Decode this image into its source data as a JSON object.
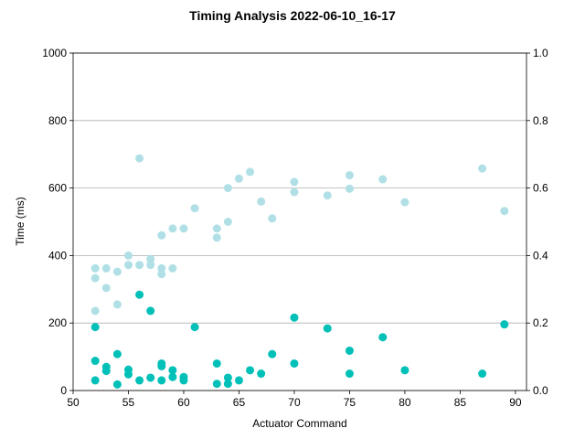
{
  "chart_data": {
    "type": "scatter",
    "title": "Timing Analysis 2022-06-10_16-17",
    "xlabel": "Actuator Command",
    "ylabel": "Time (ms)",
    "xlim": [
      50,
      91
    ],
    "ylim": [
      0,
      1000
    ],
    "y2lim": [
      0,
      1.0
    ],
    "grid": "horizontal",
    "legend": "none",
    "x_ticks": [
      "50",
      "55",
      "60",
      "65",
      "70",
      "75",
      "80",
      "85",
      "90"
    ],
    "y_ticks": [
      "0",
      "200",
      "400",
      "600",
      "800",
      "1000"
    ],
    "y2_ticks": [
      "0.0",
      "0.2",
      "0.4",
      "0.6",
      "0.8",
      "1.0"
    ],
    "series": [
      {
        "color": "#b0e0e6",
        "points": [
          [
            52,
            362
          ],
          [
            52,
            333
          ],
          [
            52,
            236
          ],
          [
            53,
            362
          ],
          [
            53,
            304
          ],
          [
            54,
            352
          ],
          [
            54,
            255
          ],
          [
            55,
            400
          ],
          [
            55,
            372
          ],
          [
            56,
            688
          ],
          [
            56,
            372
          ],
          [
            57,
            390
          ],
          [
            57,
            372
          ],
          [
            58,
            460
          ],
          [
            58,
            362
          ],
          [
            58,
            345
          ],
          [
            59,
            480
          ],
          [
            59,
            362
          ],
          [
            60,
            480
          ],
          [
            61,
            540
          ],
          [
            63,
            480
          ],
          [
            63,
            453
          ],
          [
            64,
            600
          ],
          [
            64,
            500
          ],
          [
            65,
            628
          ],
          [
            66,
            648
          ],
          [
            67,
            560
          ],
          [
            68,
            510
          ],
          [
            70,
            618
          ],
          [
            70,
            588
          ],
          [
            73,
            578
          ],
          [
            75,
            638
          ],
          [
            75,
            598
          ],
          [
            78,
            626
          ],
          [
            80,
            558
          ],
          [
            87,
            658
          ],
          [
            89,
            532
          ]
        ]
      },
      {
        "color": "#00c0b8",
        "points": [
          [
            52,
            188
          ],
          [
            52,
            88
          ],
          [
            52,
            30
          ],
          [
            53,
            70
          ],
          [
            53,
            58
          ],
          [
            54,
            108
          ],
          [
            54,
            18
          ],
          [
            55,
            62
          ],
          [
            55,
            48
          ],
          [
            56,
            284
          ],
          [
            56,
            30
          ],
          [
            57,
            236
          ],
          [
            57,
            38
          ],
          [
            58,
            80
          ],
          [
            58,
            72
          ],
          [
            58,
            30
          ],
          [
            59,
            60
          ],
          [
            59,
            40
          ],
          [
            60,
            40
          ],
          [
            60,
            30
          ],
          [
            61,
            188
          ],
          [
            63,
            80
          ],
          [
            63,
            20
          ],
          [
            64,
            38
          ],
          [
            64,
            20
          ],
          [
            65,
            30
          ],
          [
            66,
            60
          ],
          [
            67,
            50
          ],
          [
            68,
            108
          ],
          [
            70,
            216
          ],
          [
            70,
            80
          ],
          [
            73,
            184
          ],
          [
            75,
            118
          ],
          [
            75,
            50
          ],
          [
            78,
            158
          ],
          [
            80,
            60
          ],
          [
            87,
            50
          ],
          [
            89,
            196
          ]
        ]
      }
    ]
  }
}
